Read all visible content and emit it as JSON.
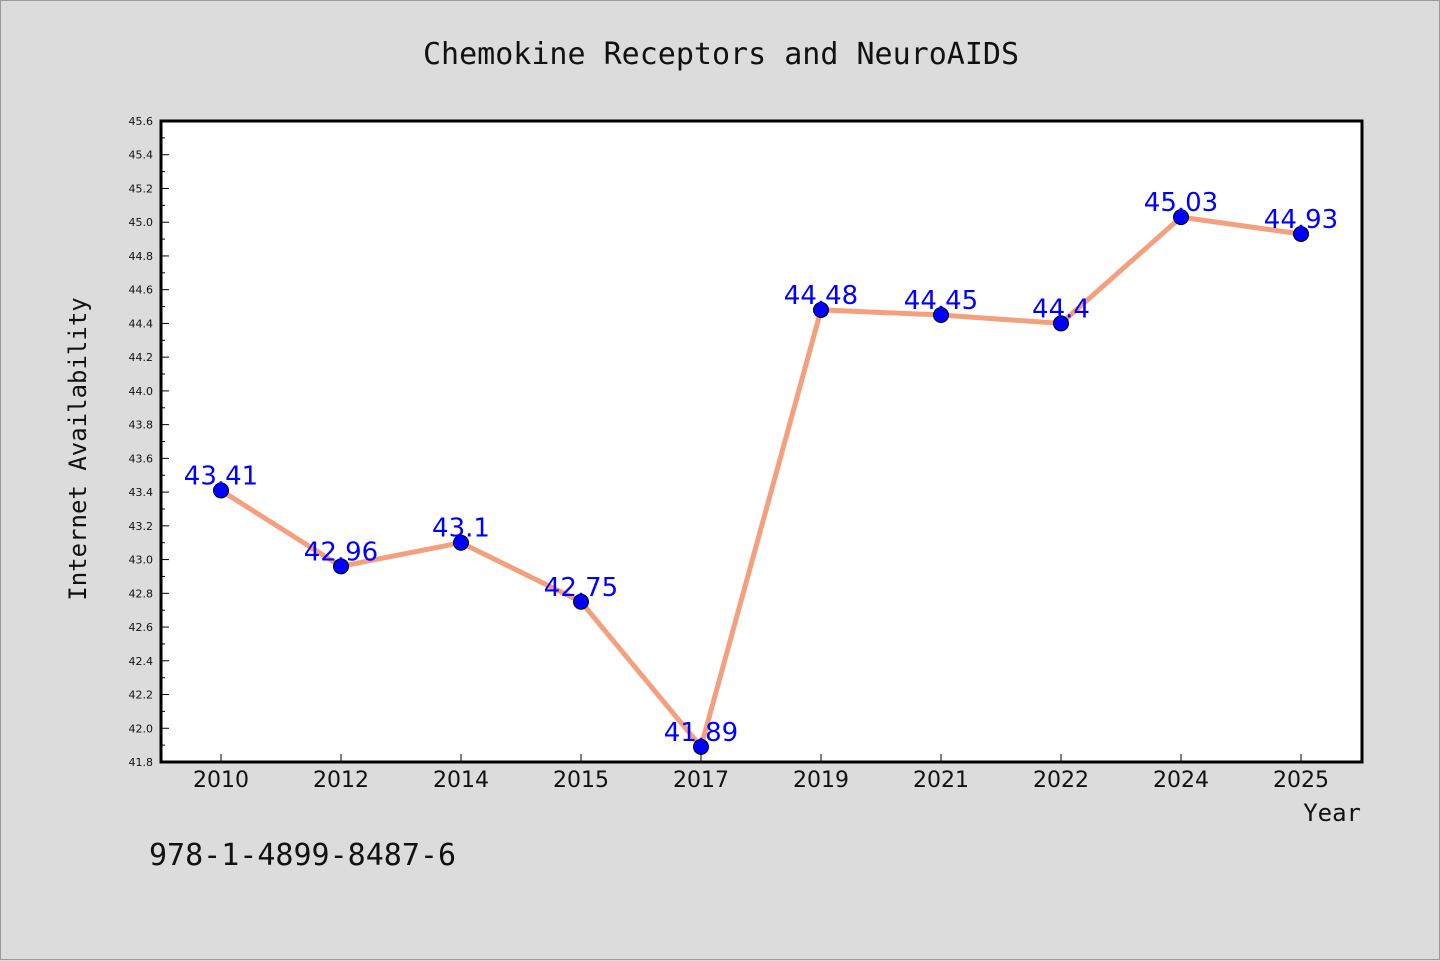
{
  "chart_data": {
    "type": "line",
    "title": "Chemokine Receptors and NeuroAIDS",
    "xlabel": "Year",
    "ylabel": "Internet Availability",
    "categories": [
      "2010",
      "2012",
      "2014",
      "2015",
      "2017",
      "2019",
      "2021",
      "2022",
      "2024",
      "2025"
    ],
    "series": [
      {
        "values": [
          43.41,
          42.96,
          43.1,
          42.75,
          41.89,
          44.48,
          44.45,
          44.4,
          45.03,
          44.93
        ],
        "labels": [
          "43.41",
          "42.96",
          "43.1",
          "42.75",
          "41.89",
          "44.48",
          "44.45",
          "44.4",
          "45.03",
          "44.93"
        ],
        "line_color": "#f4a07e",
        "marker_color": "#0000ff"
      }
    ],
    "ylim": [
      41.8,
      45.6
    ],
    "yticks": [
      "41.8",
      "42.0",
      "42.2",
      "42.4",
      "42.6",
      "42.8",
      "43.0",
      "43.2",
      "43.4",
      "43.6",
      "43.8",
      "44.0",
      "44.2",
      "44.4",
      "44.6",
      "44.8",
      "45.0",
      "45.2",
      "45.4",
      "45.6"
    ],
    "grid": false,
    "legend": "none",
    "label_color": "#0000ff",
    "background_color": "#dcdcdc",
    "plot_background": "#ffffff"
  },
  "annotation": {
    "isbn": "978-1-4899-8487-6"
  }
}
